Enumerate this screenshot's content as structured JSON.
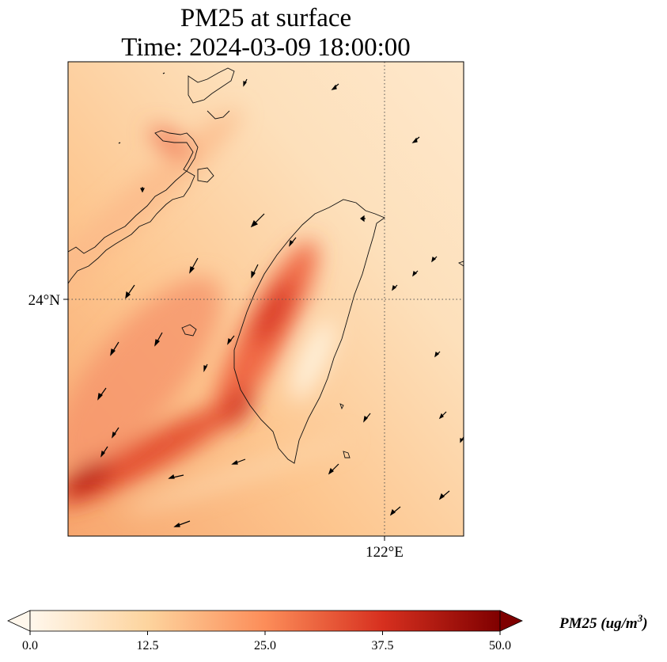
{
  "title": {
    "line1": "PM25 at surface",
    "line2": "Time: 2024-03-09 18:00:00"
  },
  "map": {
    "lat_label": "24°N",
    "lon_label": "122°E",
    "gridlines": "dotted",
    "field": "PM25",
    "wind_vectors": true
  },
  "colorbar": {
    "title": "PM25 (ug/m",
    "title_superscript": "3",
    "title_close": ")",
    "ticks": [
      "0.0",
      "12.5",
      "25.0",
      "37.5",
      "50.0"
    ],
    "range": [
      0.0,
      50.0
    ],
    "extend": "both",
    "colormap": "OrRd",
    "colors": [
      "#fff7ec",
      "#fdd49e",
      "#fc8d59",
      "#d7301f",
      "#7f0000"
    ]
  }
}
